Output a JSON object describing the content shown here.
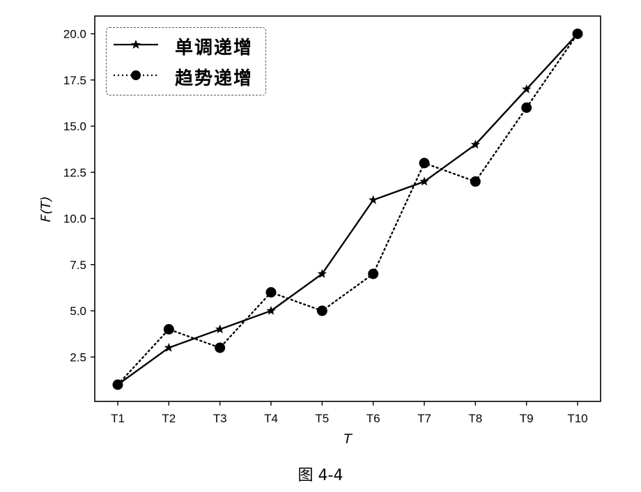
{
  "caption": "图 4-4",
  "chart_data": {
    "type": "line",
    "title": "",
    "xlabel": "T",
    "ylabel": "F(T)",
    "categories": [
      "T1",
      "T2",
      "T3",
      "T4",
      "T5",
      "T6",
      "T7",
      "T8",
      "T9",
      "T10"
    ],
    "series": [
      {
        "name": "单调递增",
        "values": [
          1,
          3,
          4,
          5,
          7,
          11,
          12,
          14,
          17,
          20
        ],
        "linestyle": "solid",
        "marker": "star",
        "color": "#000000"
      },
      {
        "name": "趋势递增",
        "values": [
          1,
          4,
          3,
          6,
          5,
          7,
          13,
          12,
          16,
          20
        ],
        "linestyle": "dotted",
        "marker": "circle",
        "color": "#000000"
      }
    ],
    "yticks": [
      "2.5",
      "5.0",
      "7.5",
      "10.0",
      "12.5",
      "15.0",
      "17.5",
      "20.0"
    ],
    "ytick_values": [
      2.5,
      5,
      7.5,
      10,
      12.5,
      15,
      17.5,
      20
    ],
    "ylim": [
      0.05,
      20.95
    ],
    "grid": false,
    "legend_position": "upper left"
  }
}
